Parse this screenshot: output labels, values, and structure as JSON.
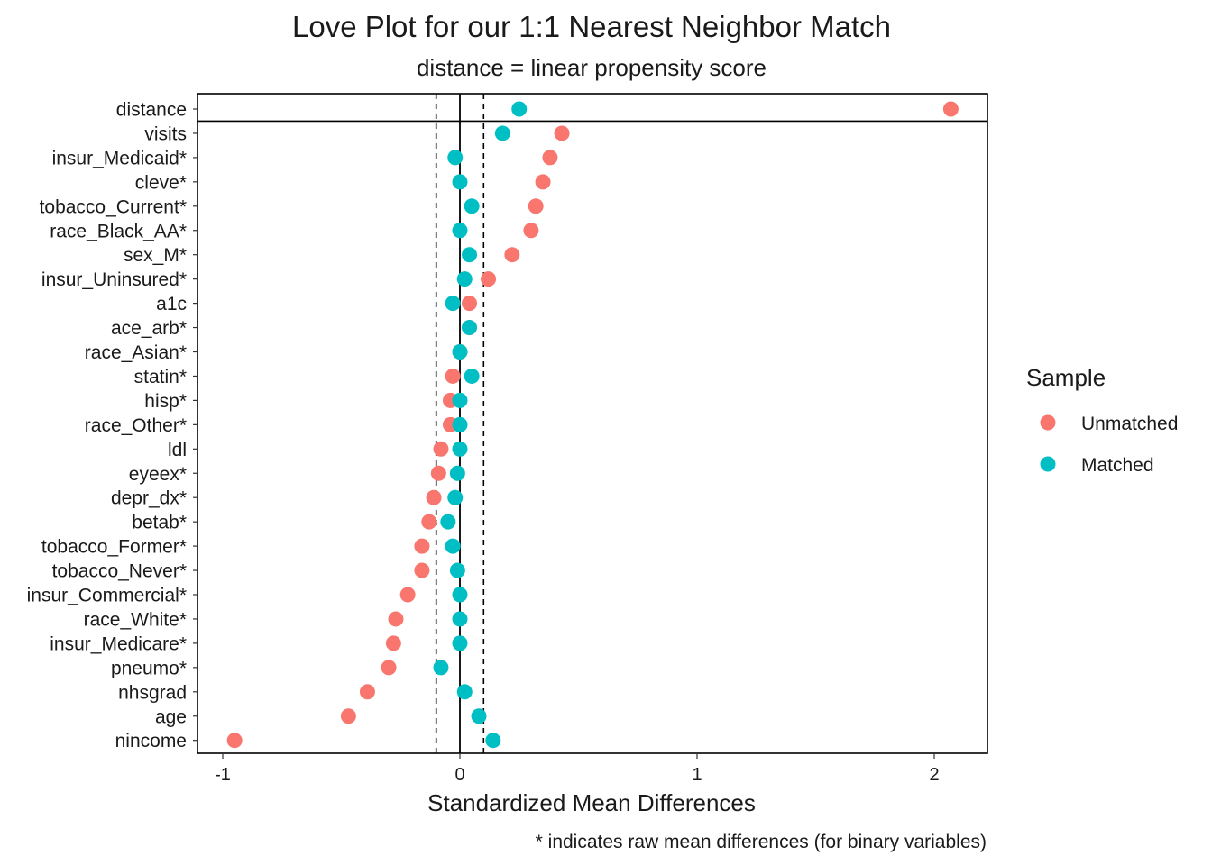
{
  "chart_data": {
    "type": "scatter",
    "title": "Love Plot for our 1:1 Nearest Neighbor Match",
    "subtitle": "distance = linear propensity score",
    "xlabel": "Standardized Mean Differences",
    "caption": "* indicates raw mean differences (for binary variables)",
    "xlim": [
      -1.1,
      2.22
    ],
    "xticks": [
      -1,
      0,
      1,
      2
    ],
    "xtick_labels": [
      "-1",
      "0",
      "1",
      "2"
    ],
    "threshold_lines": [
      -0.1,
      0.1
    ],
    "reference_line": 0,
    "grid": false,
    "legend": {
      "title": "Sample",
      "position": "right",
      "entries": [
        "Unmatched",
        "Matched"
      ]
    },
    "colors": {
      "Unmatched": "#F8766D",
      "Matched": "#00BFC4"
    },
    "categories": [
      "distance",
      "visits",
      "insur_Medicaid*",
      "cleve*",
      "tobacco_Current*",
      "race_Black_AA*",
      "sex_M*",
      "insur_Uninsured*",
      "a1c",
      "ace_arb*",
      "race_Asian*",
      "statin*",
      "hisp*",
      "race_Other*",
      "ldl",
      "eyeex*",
      "depr_dx*",
      "betab*",
      "tobacco_Former*",
      "tobacco_Never*",
      "insur_Commercial*",
      "race_White*",
      "insur_Medicare*",
      "pneumo*",
      "nhsgrad",
      "age",
      "nincome"
    ],
    "series": [
      {
        "name": "Unmatched",
        "values": [
          2.07,
          0.43,
          0.38,
          0.35,
          0.32,
          0.3,
          0.22,
          0.12,
          0.04,
          0.04,
          0.0,
          -0.03,
          -0.04,
          -0.04,
          -0.08,
          -0.09,
          -0.11,
          -0.13,
          -0.16,
          -0.16,
          -0.22,
          -0.27,
          -0.28,
          -0.3,
          -0.39,
          -0.47,
          -0.95
        ]
      },
      {
        "name": "Matched",
        "values": [
          0.25,
          0.18,
          -0.02,
          0.0,
          0.05,
          0.0,
          0.04,
          0.02,
          -0.03,
          0.04,
          0.0,
          0.05,
          0.0,
          0.0,
          0.0,
          -0.01,
          -0.02,
          -0.05,
          -0.03,
          -0.01,
          0.0,
          0.0,
          0.0,
          -0.08,
          0.02,
          0.08,
          0.14
        ]
      }
    ]
  }
}
